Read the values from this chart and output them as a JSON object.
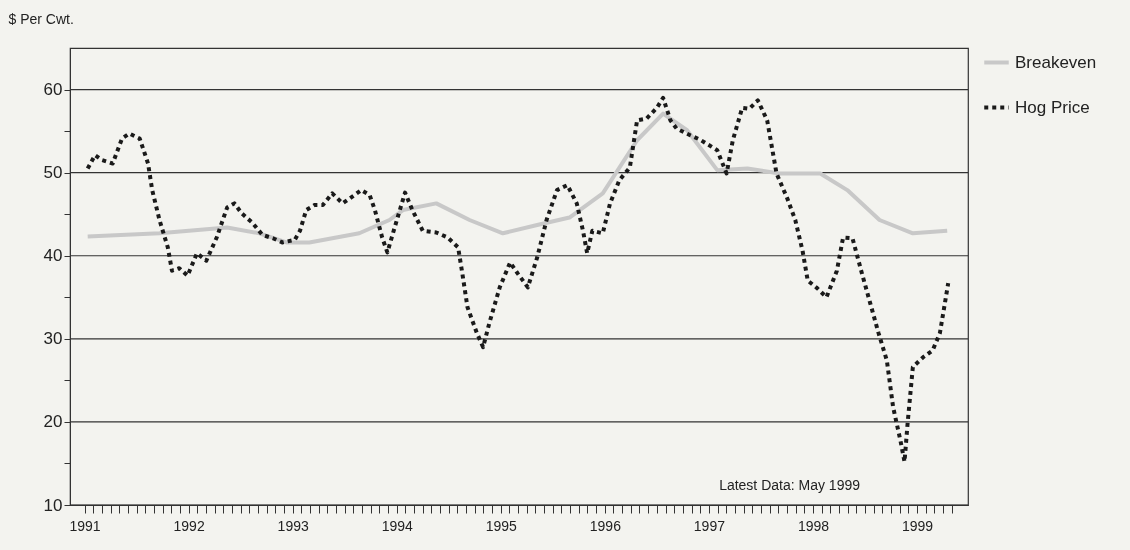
{
  "chart_data": {
    "type": "line",
    "ylabel": "$ Per Cwt.",
    "annotations": [
      "Latest Data: May 1999"
    ],
    "xlim": [
      1990.86,
      1999.49
    ],
    "ylim": [
      10,
      65
    ],
    "yticks": [
      10,
      {
        "value": 15,
        "label": null
      },
      20,
      {
        "value": 25,
        "label": null
      },
      30,
      {
        "value": 35,
        "label": null
      },
      40,
      {
        "value": 45,
        "label": null
      },
      50,
      {
        "value": 55,
        "label": null
      },
      60
    ],
    "xticks": [
      1991,
      {
        "value": 1991.083,
        "label": null
      },
      {
        "value": 1991.167,
        "label": null
      },
      {
        "value": 1991.25,
        "label": null
      },
      {
        "value": 1991.333,
        "label": null
      },
      {
        "value": 1991.417,
        "label": null
      },
      {
        "value": 1991.5,
        "label": null
      },
      {
        "value": 1991.583,
        "label": null
      },
      {
        "value": 1991.667,
        "label": null
      },
      {
        "value": 1991.75,
        "label": null
      },
      {
        "value": 1991.833,
        "label": null
      },
      {
        "value": 1991.917,
        "label": null
      },
      1992,
      {
        "value": 1992.083,
        "label": null
      },
      {
        "value": 1992.167,
        "label": null
      },
      {
        "value": 1992.25,
        "label": null
      },
      {
        "value": 1992.333,
        "label": null
      },
      {
        "value": 1992.417,
        "label": null
      },
      {
        "value": 1992.5,
        "label": null
      },
      {
        "value": 1992.583,
        "label": null
      },
      {
        "value": 1992.667,
        "label": null
      },
      {
        "value": 1992.75,
        "label": null
      },
      {
        "value": 1992.833,
        "label": null
      },
      {
        "value": 1992.917,
        "label": null
      },
      1993,
      {
        "value": 1993.083,
        "label": null
      },
      {
        "value": 1993.167,
        "label": null
      },
      {
        "value": 1993.25,
        "label": null
      },
      {
        "value": 1993.333,
        "label": null
      },
      {
        "value": 1993.417,
        "label": null
      },
      {
        "value": 1993.5,
        "label": null
      },
      {
        "value": 1993.583,
        "label": null
      },
      {
        "value": 1993.667,
        "label": null
      },
      {
        "value": 1993.75,
        "label": null
      },
      {
        "value": 1993.833,
        "label": null
      },
      {
        "value": 1993.917,
        "label": null
      },
      1994,
      {
        "value": 1994.083,
        "label": null
      },
      {
        "value": 1994.167,
        "label": null
      },
      {
        "value": 1994.25,
        "label": null
      },
      {
        "value": 1994.333,
        "label": null
      },
      {
        "value": 1994.417,
        "label": null
      },
      {
        "value": 1994.5,
        "label": null
      },
      {
        "value": 1994.583,
        "label": null
      },
      {
        "value": 1994.667,
        "label": null
      },
      {
        "value": 1994.75,
        "label": null
      },
      {
        "value": 1994.833,
        "label": null
      },
      {
        "value": 1994.917,
        "label": null
      },
      1995,
      {
        "value": 1995.083,
        "label": null
      },
      {
        "value": 1995.167,
        "label": null
      },
      {
        "value": 1995.25,
        "label": null
      },
      {
        "value": 1995.333,
        "label": null
      },
      {
        "value": 1995.417,
        "label": null
      },
      {
        "value": 1995.5,
        "label": null
      },
      {
        "value": 1995.583,
        "label": null
      },
      {
        "value": 1995.667,
        "label": null
      },
      {
        "value": 1995.75,
        "label": null
      },
      {
        "value": 1995.833,
        "label": null
      },
      {
        "value": 1995.917,
        "label": null
      },
      1996,
      {
        "value": 1996.083,
        "label": null
      },
      {
        "value": 1996.167,
        "label": null
      },
      {
        "value": 1996.25,
        "label": null
      },
      {
        "value": 1996.333,
        "label": null
      },
      {
        "value": 1996.417,
        "label": null
      },
      {
        "value": 1996.5,
        "label": null
      },
      {
        "value": 1996.583,
        "label": null
      },
      {
        "value": 1996.667,
        "label": null
      },
      {
        "value": 1996.75,
        "label": null
      },
      {
        "value": 1996.833,
        "label": null
      },
      {
        "value": 1996.917,
        "label": null
      },
      1997,
      {
        "value": 1997.083,
        "label": null
      },
      {
        "value": 1997.167,
        "label": null
      },
      {
        "value": 1997.25,
        "label": null
      },
      {
        "value": 1997.333,
        "label": null
      },
      {
        "value": 1997.417,
        "label": null
      },
      {
        "value": 1997.5,
        "label": null
      },
      {
        "value": 1997.583,
        "label": null
      },
      {
        "value": 1997.667,
        "label": null
      },
      {
        "value": 1997.75,
        "label": null
      },
      {
        "value": 1997.833,
        "label": null
      },
      {
        "value": 1997.917,
        "label": null
      },
      1998,
      {
        "value": 1998.083,
        "label": null
      },
      {
        "value": 1998.167,
        "label": null
      },
      {
        "value": 1998.25,
        "label": null
      },
      {
        "value": 1998.333,
        "label": null
      },
      {
        "value": 1998.417,
        "label": null
      },
      {
        "value": 1998.5,
        "label": null
      },
      {
        "value": 1998.583,
        "label": null
      },
      {
        "value": 1998.667,
        "label": null
      },
      {
        "value": 1998.75,
        "label": null
      },
      {
        "value": 1998.833,
        "label": null
      },
      {
        "value": 1998.917,
        "label": null
      },
      1999,
      {
        "value": 1999.083,
        "label": null
      },
      {
        "value": 1999.167,
        "label": null
      },
      {
        "value": 1999.25,
        "label": null
      },
      {
        "value": 1999.333,
        "label": null
      }
    ],
    "grid": "y",
    "legend": "top right",
    "series": [
      {
        "name": "Breakeven",
        "color": "#c8c8c8",
        "line_style": "solid",
        "x": [
          1991.03,
          1991.72,
          1992.37,
          1992.68,
          1992.94,
          1993.16,
          1993.64,
          1993.93,
          1994.06,
          1994.38,
          1994.7,
          1995.02,
          1995.35,
          1995.66,
          1995.98,
          1996.31,
          1996.56,
          1996.79,
          1997.08,
          1997.37,
          1997.68,
          1998.07,
          1998.33,
          1998.64,
          1998.96,
          1999.29
        ],
        "values": [
          42.3,
          42.7,
          43.4,
          42.7,
          41.6,
          41.6,
          42.7,
          44.3,
          45.5,
          46.3,
          44.3,
          42.7,
          43.7,
          44.6,
          47.5,
          53.9,
          57.1,
          55.1,
          50.3,
          50.5,
          49.9,
          49.9,
          47.9,
          44.3,
          42.7,
          43
        ]
      },
      {
        "name": "Hog Price",
        "color": "#1a1a1a",
        "line_style": "dotted",
        "x": [
          1991.03,
          1991.1,
          1991.17,
          1991.27,
          1991.36,
          1991.43,
          1991.53,
          1991.61,
          1991.65,
          1991.72,
          1991.8,
          1991.84,
          1991.91,
          1991.99,
          1992.08,
          1992.17,
          1992.27,
          1992.37,
          1992.44,
          1992.51,
          1992.61,
          1992.71,
          1992.81,
          1992.9,
          1993.02,
          1993.07,
          1993.13,
          1993.21,
          1993.29,
          1993.38,
          1993.48,
          1993.55,
          1993.66,
          1993.74,
          1993.79,
          1993.86,
          1993.91,
          1993.98,
          1994.08,
          1994.15,
          1994.25,
          1994.38,
          1994.49,
          1994.59,
          1994.63,
          1994.68,
          1994.77,
          1994.83,
          1994.89,
          1994.99,
          1995.09,
          1995.16,
          1995.26,
          1995.35,
          1995.44,
          1995.54,
          1995.64,
          1995.73,
          1995.79,
          1995.83,
          1995.88,
          1995.98,
          1996.05,
          1996.14,
          1996.24,
          1996.31,
          1996.4,
          1996.5,
          1996.56,
          1996.63,
          1996.69,
          1996.82,
          1996.91,
          1997.08,
          1997.17,
          1997.23,
          1997.32,
          1997.39,
          1997.47,
          1997.56,
          1997.65,
          1997.75,
          1997.83,
          1997.9,
          1997.95,
          1998.04,
          1998.13,
          1998.23,
          1998.29,
          1998.38,
          1998.47,
          1998.55,
          1998.63,
          1998.71,
          1998.77,
          1998.84,
          1998.88,
          1998.91,
          1998.96,
          1999.06,
          1999.15,
          1999.22,
          1999.3
        ],
        "values": [
          50.5,
          52.1,
          51.5,
          51.1,
          54.1,
          54.7,
          54.1,
          51.1,
          47.9,
          44.3,
          41,
          38.2,
          38.5,
          37.6,
          40.3,
          39.4,
          42.2,
          45.8,
          46.3,
          45.1,
          44,
          42.5,
          42.1,
          41.6,
          41.9,
          43,
          45.5,
          46.1,
          46.1,
          47.5,
          46.3,
          46.9,
          47.9,
          47.3,
          45.5,
          42.2,
          40.4,
          43.4,
          47.6,
          45.5,
          43,
          42.8,
          42.2,
          41,
          37.9,
          33.8,
          30.7,
          29,
          31.9,
          36.2,
          39.2,
          37.9,
          36.2,
          39.8,
          44.3,
          47.9,
          48.5,
          46.3,
          43,
          40.3,
          43,
          42.7,
          46.3,
          49.1,
          50.6,
          56.3,
          56.5,
          57.8,
          59,
          56.3,
          55.3,
          54.5,
          54,
          52.7,
          49.9,
          53.9,
          57.8,
          57.7,
          58.7,
          56.3,
          49.9,
          47,
          44.3,
          40.6,
          37,
          36.1,
          35,
          38.2,
          42.2,
          42.1,
          37.9,
          34.3,
          30.7,
          27.4,
          21.8,
          17.8,
          15.2,
          19.9,
          26.6,
          27.8,
          28.6,
          30.7,
          36.7
        ]
      }
    ]
  }
}
